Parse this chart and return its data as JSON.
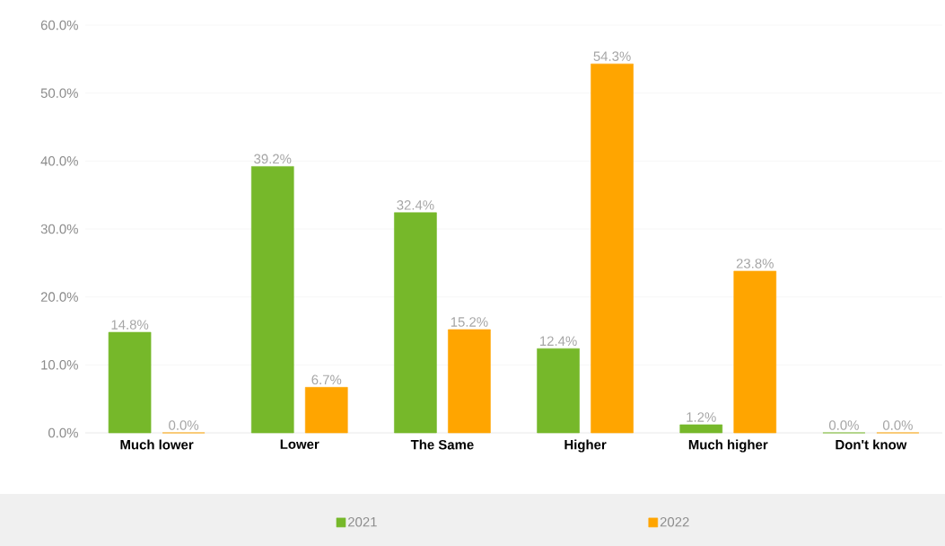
{
  "chart_data": {
    "type": "bar",
    "categories": [
      "Much lower",
      "Lower",
      "The Same",
      "Higher",
      "Much higher",
      "Don't know"
    ],
    "series": [
      {
        "name": "2021",
        "color": "#76b82a",
        "values": [
          14.8,
          39.2,
          32.4,
          12.4,
          1.2,
          0.0
        ],
        "value_labels": [
          "14.8%",
          "39.2%",
          "32.4%",
          "12.4%",
          "1.2%",
          "0.0%"
        ]
      },
      {
        "name": "2022",
        "color": "#ffa500",
        "values": [
          0.0,
          6.7,
          15.2,
          54.3,
          23.8,
          0.0
        ],
        "value_labels": [
          "0.0%",
          "6.7%",
          "15.2%",
          "54.3%",
          "23.8%",
          "0.0%"
        ]
      }
    ],
    "ylim": [
      0,
      60
    ],
    "yticks": [
      {
        "value": 0,
        "label": "0.0%"
      },
      {
        "value": 10,
        "label": "10.0%"
      },
      {
        "value": 20,
        "label": "20.0%"
      },
      {
        "value": 30,
        "label": "30.0%"
      },
      {
        "value": 40,
        "label": "40.0%"
      },
      {
        "value": 50,
        "label": "50.0%"
      },
      {
        "value": 60,
        "label": "60.0%"
      }
    ],
    "grid": "y",
    "legend": "bottom"
  }
}
